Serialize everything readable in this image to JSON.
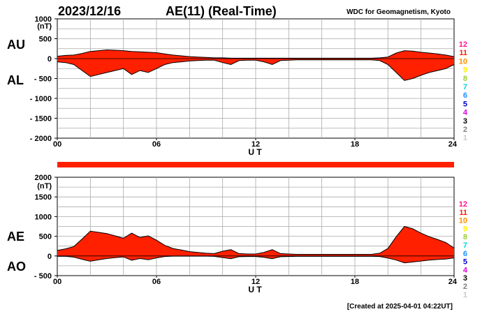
{
  "header": {
    "date": "2023/12/16",
    "title": "AE(11) (Real-Time)",
    "source": "WDC for Geomagnetism, Kyoto"
  },
  "footer": {
    "created": "[Created at 2025-04-01 04:22UT]"
  },
  "station_numbers": [
    {
      "label": "12",
      "color": "#ff1493"
    },
    {
      "label": "11",
      "color": "#ff2000"
    },
    {
      "label": "10",
      "color": "#ff8c00"
    },
    {
      "label": "9",
      "color": "#ffee00"
    },
    {
      "label": "8",
      "color": "#9acd32"
    },
    {
      "label": "7",
      "color": "#00d8d8"
    },
    {
      "label": "6",
      "color": "#1e90ff"
    },
    {
      "label": "5",
      "color": "#0000cd"
    },
    {
      "label": "4",
      "color": "#dd00dd"
    },
    {
      "label": "3",
      "color": "#000000"
    },
    {
      "label": "2",
      "color": "#808080"
    },
    {
      "label": "1",
      "color": "#c8c8c8"
    }
  ],
  "chart_data": [
    {
      "type": "area",
      "panel": "AU/AL",
      "series_labels": [
        "AU",
        "AL"
      ],
      "unit_label": "(nT)",
      "xlabel": "U T",
      "ylim": [
        -2000,
        1000
      ],
      "y_ticks": [
        "1000",
        "500",
        "0",
        "- 500",
        "- 1000",
        "- 1500",
        "- 2000"
      ],
      "y_tick_values": [
        1000,
        500,
        0,
        -500,
        -1000,
        -1500,
        -2000
      ],
      "x_ticks": [
        "00",
        "06",
        "12",
        "18",
        "24"
      ],
      "x_tick_values": [
        0,
        6,
        12,
        18,
        24
      ],
      "xlim": [
        0,
        24
      ],
      "grid": true,
      "fill_color": "#ff2000",
      "hours": [
        0,
        0.5,
        1,
        1.5,
        2,
        2.5,
        3,
        3.5,
        4,
        4.5,
        5,
        5.5,
        6,
        6.5,
        7,
        7.5,
        8,
        8.5,
        9,
        9.5,
        10,
        10.5,
        11,
        11.5,
        12,
        12.5,
        13,
        13.5,
        14,
        14.5,
        15,
        15.5,
        16,
        16.5,
        17,
        17.5,
        18,
        18.5,
        19,
        19.5,
        20,
        20.5,
        21,
        21.5,
        22,
        22.5,
        23,
        23.5,
        24
      ],
      "au": [
        60,
        80,
        90,
        130,
        180,
        200,
        220,
        210,
        200,
        180,
        170,
        160,
        150,
        120,
        90,
        70,
        50,
        40,
        30,
        20,
        20,
        10,
        10,
        10,
        10,
        10,
        10,
        10,
        10,
        10,
        10,
        10,
        10,
        10,
        10,
        10,
        10,
        10,
        10,
        20,
        40,
        140,
        200,
        190,
        160,
        140,
        120,
        90,
        50
      ],
      "al": [
        -80,
        -100,
        -150,
        -300,
        -450,
        -400,
        -350,
        -300,
        -250,
        -400,
        -300,
        -350,
        -250,
        -150,
        -100,
        -80,
        -60,
        -50,
        -40,
        -40,
        -100,
        -150,
        -50,
        -40,
        -40,
        -80,
        -150,
        -50,
        -40,
        -30,
        -30,
        -30,
        -30,
        -30,
        -30,
        -30,
        -30,
        -30,
        -30,
        -50,
        -150,
        -350,
        -550,
        -500,
        -420,
        -350,
        -300,
        -250,
        -150
      ]
    },
    {
      "type": "area",
      "panel": "AE/AO",
      "series_labels": [
        "AE",
        "AO"
      ],
      "unit_label": "(nT)",
      "xlabel": "U T",
      "ylim": [
        -500,
        2000
      ],
      "y_ticks": [
        "2000",
        "1500",
        "1000",
        "500",
        "0",
        "- 500"
      ],
      "y_tick_values": [
        2000,
        1500,
        1000,
        500,
        0,
        -500
      ],
      "x_ticks": [
        "00",
        "06",
        "12",
        "18",
        "24"
      ],
      "x_tick_values": [
        0,
        6,
        12,
        18,
        24
      ],
      "xlim": [
        0,
        24
      ],
      "grid": true,
      "fill_color": "#ff2000",
      "hours": [
        0,
        0.5,
        1,
        1.5,
        2,
        2.5,
        3,
        3.5,
        4,
        4.5,
        5,
        5.5,
        6,
        6.5,
        7,
        7.5,
        8,
        8.5,
        9,
        9.5,
        10,
        10.5,
        11,
        11.5,
        12,
        12.5,
        13,
        13.5,
        14,
        14.5,
        15,
        15.5,
        16,
        16.5,
        17,
        17.5,
        18,
        18.5,
        19,
        19.5,
        20,
        20.5,
        21,
        21.5,
        22,
        22.5,
        23,
        23.5,
        24
      ],
      "ae": [
        140,
        180,
        240,
        430,
        630,
        600,
        570,
        510,
        450,
        580,
        470,
        510,
        400,
        270,
        190,
        150,
        110,
        90,
        70,
        60,
        120,
        160,
        60,
        50,
        50,
        90,
        160,
        60,
        50,
        40,
        40,
        40,
        40,
        40,
        40,
        40,
        40,
        40,
        40,
        70,
        190,
        490,
        750,
        690,
        580,
        490,
        420,
        340,
        200
      ],
      "ao": [
        -10,
        -10,
        -30,
        -85,
        -135,
        -100,
        -65,
        -45,
        -25,
        -110,
        -65,
        -95,
        -50,
        -15,
        -5,
        -5,
        -5,
        -5,
        -5,
        -10,
        -40,
        -70,
        -20,
        -15,
        -15,
        -35,
        -70,
        -20,
        -15,
        -10,
        -10,
        -10,
        -10,
        -10,
        -10,
        -10,
        -10,
        -10,
        -10,
        -15,
        -55,
        -105,
        -175,
        -155,
        -130,
        -105,
        -90,
        -80,
        -50
      ]
    }
  ]
}
